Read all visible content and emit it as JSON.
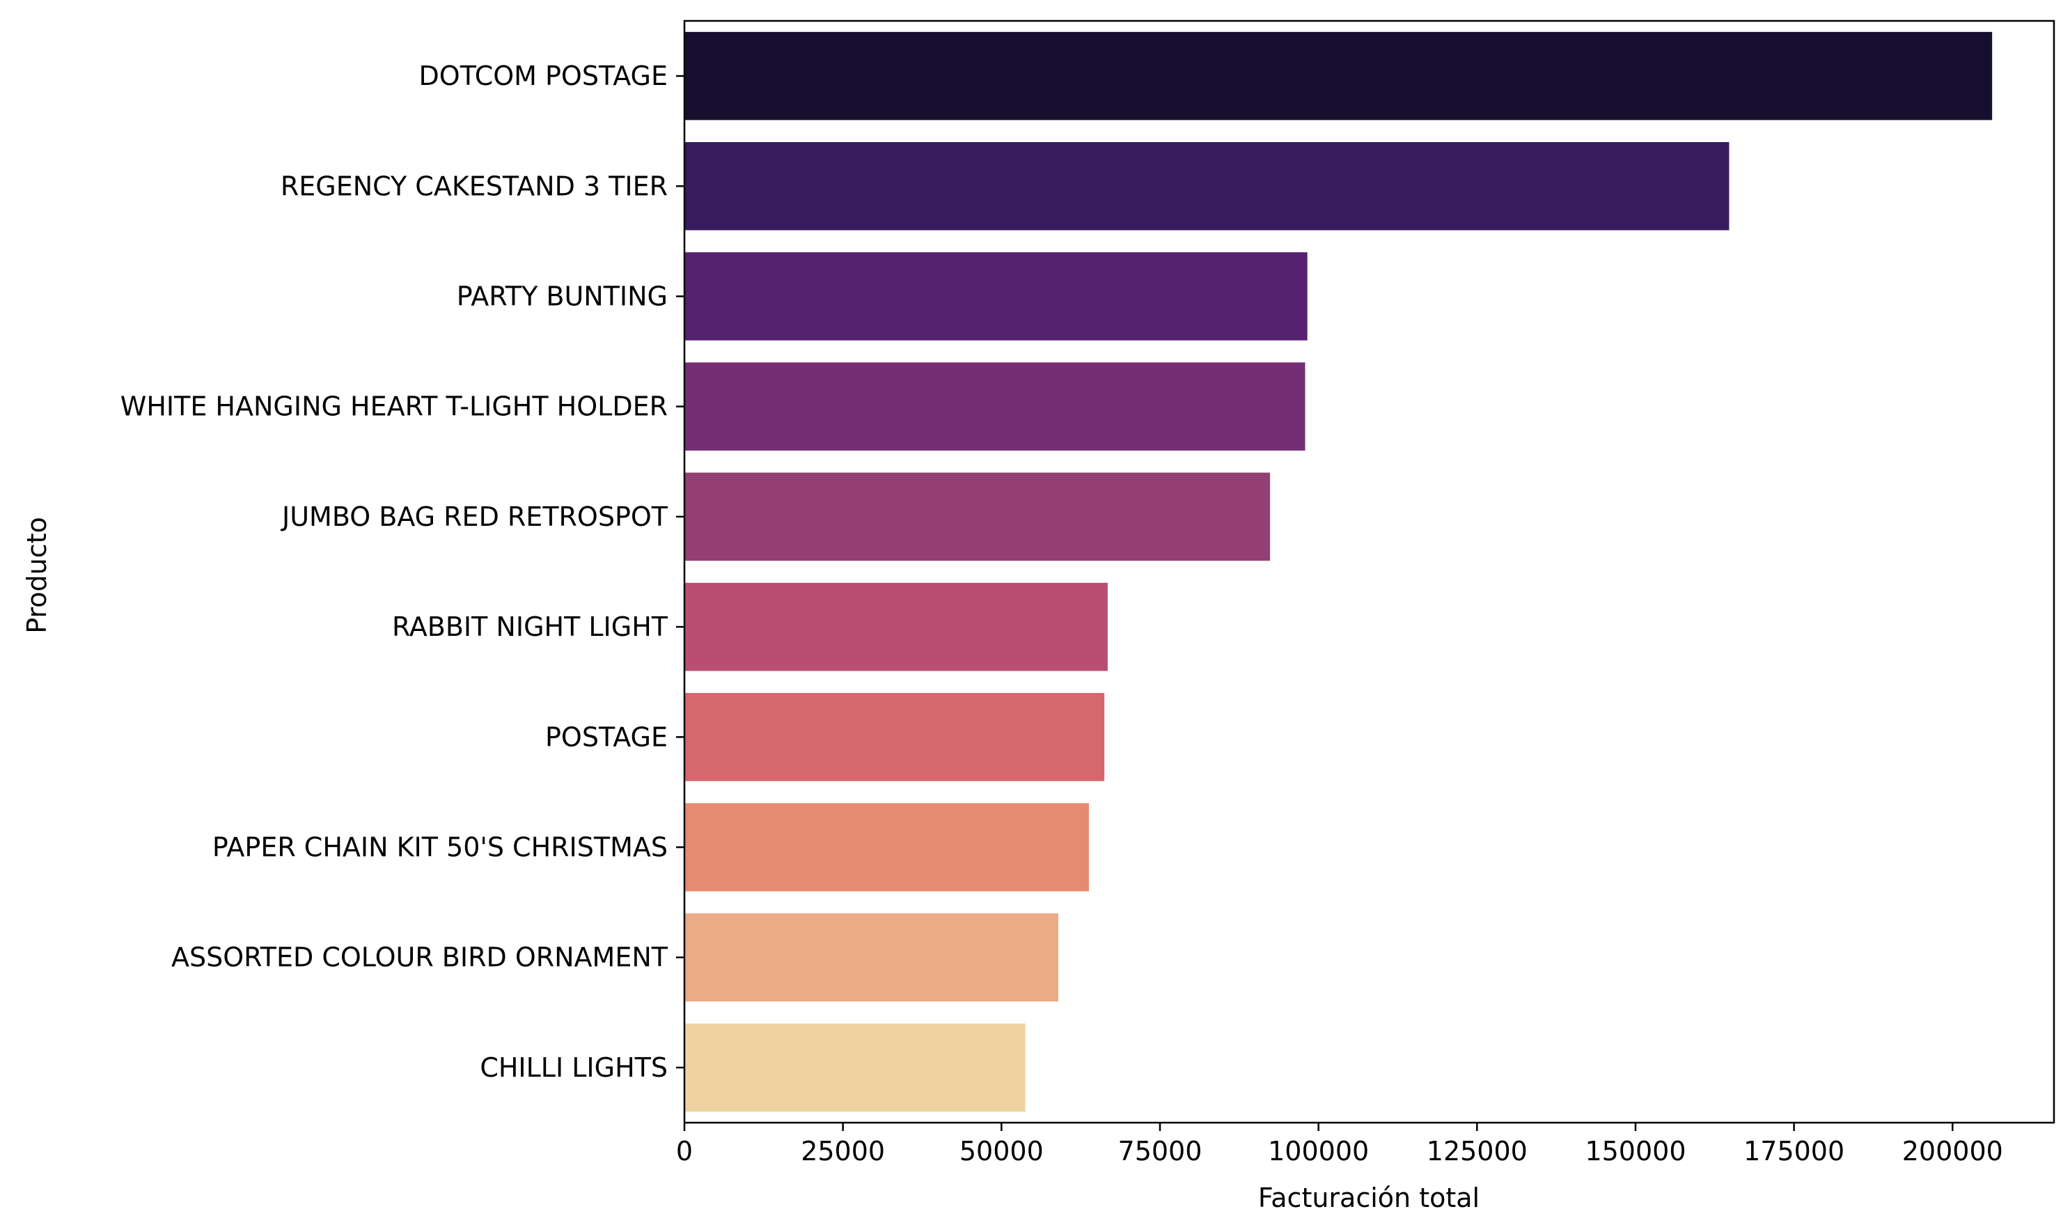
{
  "chart_data": {
    "type": "bar",
    "orientation": "horizontal",
    "categories": [
      "DOTCOM POSTAGE",
      "REGENCY CAKESTAND 3 TIER",
      "PARTY BUNTING",
      "WHITE HANGING HEART T-LIGHT HOLDER",
      "JUMBO BAG RED RETROSPOT",
      "RABBIT NIGHT LIGHT",
      "POSTAGE",
      "PAPER CHAIN KIT 50'S CHRISTMAS",
      "ASSORTED COLOUR BIRD ORNAMENT",
      "CHILLI LIGHTS"
    ],
    "values": [
      206245,
      164762,
      98243,
      97894,
      92356,
      66756,
      66231,
      63792,
      58960,
      53768
    ],
    "colors": [
      "#170f2f",
      "#371c5d",
      "#56216e",
      "#742f74",
      "#933f74",
      "#b84f72",
      "#d7676e",
      "#e68a71",
      "#ebab84",
      "#f0d1a1"
    ],
    "title": "",
    "xlabel": "Facturación total",
    "ylabel": "Producto",
    "xlim": [
      0,
      216000
    ],
    "xticks": [
      0,
      25000,
      50000,
      75000,
      100000,
      125000,
      150000,
      175000,
      200000
    ],
    "grid": false,
    "legend": "none"
  }
}
